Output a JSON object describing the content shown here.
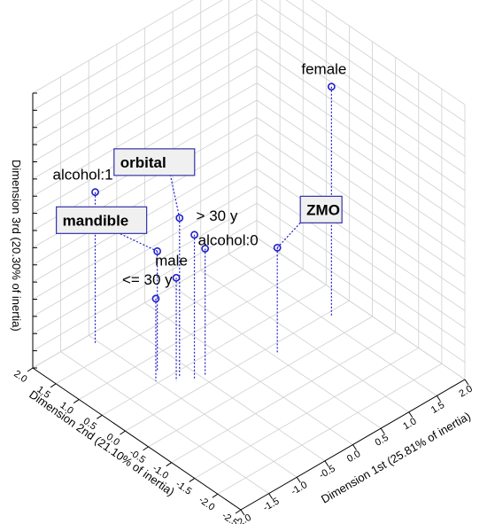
{
  "chart_data": {
    "type": "scatter3d",
    "title": "",
    "xlabel": "Dimension 1st (25.81% of inertia)",
    "ylabel": "Dimension 2nd (21.10% of inertia)",
    "zlabel": "Dimension 3rd (20.30% of inertia)",
    "x_ticks": [
      "-2.0",
      "-1.5",
      "-1.0",
      "-0.5",
      "0.0",
      "0.5",
      "1.0",
      "1.5",
      "2.0"
    ],
    "y_ticks": [
      "-2.5",
      "-2.0",
      "-1.5",
      "-1.0",
      "-0.5",
      "0.0",
      "0.5",
      "1.0",
      "1.5",
      "2.0"
    ],
    "xlim": [
      -2.0,
      2.0
    ],
    "ylim": [
      -2.5,
      2.0
    ],
    "zlim": [
      -1.5,
      2.5
    ],
    "grid": true,
    "point_color": "#1f1fcc",
    "box_border_color": "#3333aa",
    "box_fill_color": "#f0f0f0",
    "points": [
      {
        "label": "female",
        "x": 1.6,
        "y": -0.1,
        "z": 1.85,
        "boxed": false
      },
      {
        "label": "orbital",
        "x": -0.7,
        "y": 0.4,
        "z": 0.8,
        "boxed": true
      },
      {
        "label": "alcohol:1",
        "x": -1.05,
        "y": 1.8,
        "z": 0.7,
        "boxed": false
      },
      {
        "label": "> 30 y",
        "x": -0.6,
        "y": 0.2,
        "z": 0.6,
        "boxed": false
      },
      {
        "label": "mandible",
        "x": -0.85,
        "y": 0.7,
        "z": 0.25,
        "boxed": true
      },
      {
        "label": "male",
        "x": -0.8,
        "y": 0.35,
        "z": 0.0,
        "boxed": false
      },
      {
        "label": "alcohol:0",
        "x": -0.45,
        "y": 0.15,
        "z": 0.35,
        "boxed": false
      },
      {
        "label": "<= 30 y",
        "x": -1.0,
        "y": 0.55,
        "z": -0.3,
        "boxed": false
      },
      {
        "label": "ZMO",
        "x": 0.55,
        "y": -0.2,
        "z": 0.05,
        "boxed": true
      }
    ]
  }
}
